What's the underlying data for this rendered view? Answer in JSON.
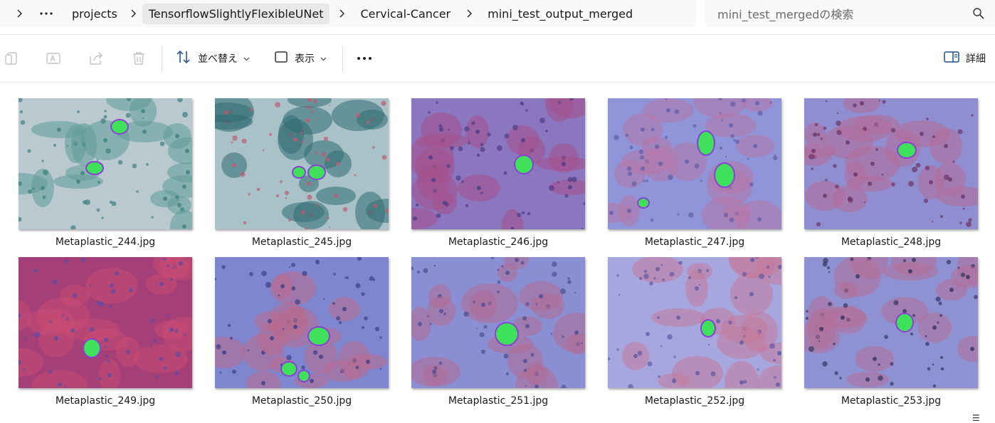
{
  "breadcrumb": {
    "items": [
      {
        "label": "projects"
      },
      {
        "label": "TensorflowSlightlyFlexibleUNet"
      },
      {
        "label": "Cervical-Cancer"
      },
      {
        "label": "mini_test_output_merged"
      }
    ]
  },
  "search": {
    "placeholder": "mini_test_mergedの検索"
  },
  "toolbar": {
    "sort_label": "並べ替え",
    "view_label": "表示",
    "details_label": "詳細"
  },
  "files": [
    {
      "name": "Metaplastic_244.jpg",
      "bg": "#b9c9cf",
      "cell": "#5f9a97",
      "accent": "#3e7f80"
    },
    {
      "name": "Metaplastic_245.jpg",
      "bg": "#a9c2c8",
      "cell": "#2f6c73",
      "accent": "#c05a72"
    },
    {
      "name": "Metaplastic_246.jpg",
      "bg": "#8b77bf",
      "cell": "#a6508a",
      "accent": "#4d3d86"
    },
    {
      "name": "Metaplastic_247.jpg",
      "bg": "#8f95d8",
      "cell": "#b776a8",
      "accent": "#5f5ea9"
    },
    {
      "name": "Metaplastic_248.jpg",
      "bg": "#8f8ed0",
      "cell": "#b56c98",
      "accent": "#6a3566"
    },
    {
      "name": "Metaplastic_249.jpg",
      "bg": "#a53f78",
      "cell": "#c84d73",
      "accent": "#5e4ba1"
    },
    {
      "name": "Metaplastic_250.jpg",
      "bg": "#7e86cf",
      "cell": "#b96b8c",
      "accent": "#3a3f87"
    },
    {
      "name": "Metaplastic_251.jpg",
      "bg": "#8a8fd3",
      "cell": "#b06b93",
      "accent": "#4a4f92"
    },
    {
      "name": "Metaplastic_252.jpg",
      "bg": "#a7a7df",
      "cell": "#c47a9a",
      "accent": "#5e5aa5"
    },
    {
      "name": "Metaplastic_253.jpg",
      "bg": "#8f92d2",
      "cell": "#b56e97",
      "accent": "#32365f"
    }
  ]
}
